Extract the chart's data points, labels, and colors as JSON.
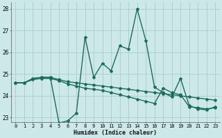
{
  "title": "",
  "xlabel": "Humidex (Indice chaleur)",
  "background_color": "#cce8e8",
  "grid_color": "#aacccc",
  "line_color": "#1a6b5a",
  "xlim": [
    -0.5,
    23.5
  ],
  "ylim": [
    22.8,
    28.3
  ],
  "yticks": [
    23,
    24,
    25,
    26,
    27,
    28
  ],
  "xticks": [
    0,
    1,
    2,
    3,
    4,
    5,
    6,
    7,
    8,
    9,
    10,
    11,
    12,
    13,
    14,
    15,
    16,
    17,
    18,
    19,
    20,
    21,
    22,
    23
  ],
  "line1_x": [
    0,
    1,
    2,
    3,
    4,
    5,
    6,
    7,
    8,
    9,
    10,
    11,
    12,
    13,
    14,
    15,
    16,
    17,
    18,
    19,
    20,
    21,
    22,
    23
  ],
  "line1_y": [
    24.6,
    24.6,
    24.8,
    24.85,
    24.85,
    22.75,
    22.85,
    23.2,
    26.7,
    24.85,
    25.5,
    25.15,
    26.3,
    26.15,
    28.0,
    26.55,
    24.4,
    24.15,
    23.95,
    24.8,
    23.55,
    23.4,
    23.35,
    23.5
  ],
  "line2_x": [
    0,
    1,
    2,
    3,
    4,
    5,
    6,
    7,
    8,
    9,
    10,
    11,
    12,
    13,
    14,
    15,
    16,
    17,
    18,
    19,
    20,
    21,
    22,
    23
  ],
  "line2_y": [
    24.6,
    24.6,
    24.8,
    24.85,
    24.85,
    24.75,
    24.65,
    24.6,
    24.55,
    24.5,
    24.45,
    24.4,
    24.35,
    24.3,
    24.25,
    24.2,
    24.15,
    24.1,
    24.05,
    24.0,
    23.95,
    23.9,
    23.85,
    23.8
  ],
  "line3_x": [
    0,
    1,
    2,
    3,
    4,
    5,
    6,
    7,
    8,
    9,
    10,
    11,
    12,
    13,
    14,
    15,
    16,
    17,
    18,
    19,
    20,
    21,
    22,
    23
  ],
  "line3_y": [
    24.6,
    24.6,
    24.75,
    24.8,
    24.8,
    24.7,
    24.55,
    24.45,
    24.35,
    24.3,
    24.25,
    24.15,
    24.05,
    23.95,
    23.85,
    23.75,
    23.65,
    24.35,
    24.15,
    24.05,
    23.5,
    23.45,
    23.4,
    23.45
  ],
  "marker": "*",
  "markersize": 3,
  "linewidth": 1.0
}
